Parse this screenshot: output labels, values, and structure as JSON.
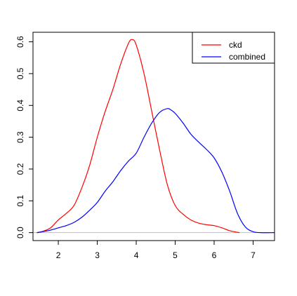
{
  "chart_data": {
    "type": "line",
    "title": "",
    "xlabel": "",
    "ylabel": "",
    "xlim": [
      1.35,
      7.55
    ],
    "ylim": [
      -0.025,
      0.63
    ],
    "x_ticks": [
      2,
      3,
      4,
      5,
      6,
      7
    ],
    "y_ticks": [
      0.0,
      0.1,
      0.2,
      0.3,
      0.4,
      0.5,
      0.6
    ],
    "x_tick_labels": [
      "2",
      "3",
      "4",
      "5",
      "6",
      "7"
    ],
    "y_tick_labels": [
      "0.0",
      "0.1",
      "0.2",
      "0.3",
      "0.4",
      "0.5",
      "0.6"
    ],
    "grid": false,
    "legend_position": "top-right",
    "baseline": {
      "y": 0,
      "color": "#bebebe"
    },
    "series": [
      {
        "name": "ckd",
        "color": "#ff0000",
        "x": [
          1.45,
          1.6,
          1.8,
          2.0,
          2.2,
          2.4,
          2.6,
          2.8,
          3.0,
          3.2,
          3.4,
          3.6,
          3.8,
          3.9,
          4.0,
          4.2,
          4.4,
          4.6,
          4.8,
          5.0,
          5.2,
          5.4,
          5.6,
          5.8,
          6.0,
          6.2,
          6.4,
          6.65
        ],
        "y": [
          0.0,
          0.004,
          0.015,
          0.04,
          0.06,
          0.085,
          0.14,
          0.21,
          0.3,
          0.38,
          0.45,
          0.53,
          0.595,
          0.607,
          0.59,
          0.5,
          0.38,
          0.26,
          0.15,
          0.085,
          0.058,
          0.04,
          0.03,
          0.025,
          0.022,
          0.015,
          0.006,
          0.0
        ]
      },
      {
        "name": "combined",
        "color": "#0000ff",
        "x": [
          1.45,
          1.6,
          1.8,
          2.0,
          2.2,
          2.4,
          2.6,
          2.8,
          3.0,
          3.2,
          3.4,
          3.6,
          3.8,
          4.0,
          4.2,
          4.4,
          4.6,
          4.8,
          4.9,
          5.0,
          5.2,
          5.4,
          5.6,
          5.8,
          6.0,
          6.2,
          6.4,
          6.6,
          6.8,
          7.0,
          7.2,
          7.55
        ],
        "y": [
          0.0,
          0.003,
          0.008,
          0.015,
          0.022,
          0.032,
          0.048,
          0.07,
          0.095,
          0.13,
          0.16,
          0.195,
          0.225,
          0.25,
          0.3,
          0.345,
          0.378,
          0.39,
          0.385,
          0.375,
          0.345,
          0.31,
          0.285,
          0.262,
          0.235,
          0.19,
          0.13,
          0.06,
          0.018,
          0.003,
          0.0,
          0.0
        ]
      }
    ]
  }
}
